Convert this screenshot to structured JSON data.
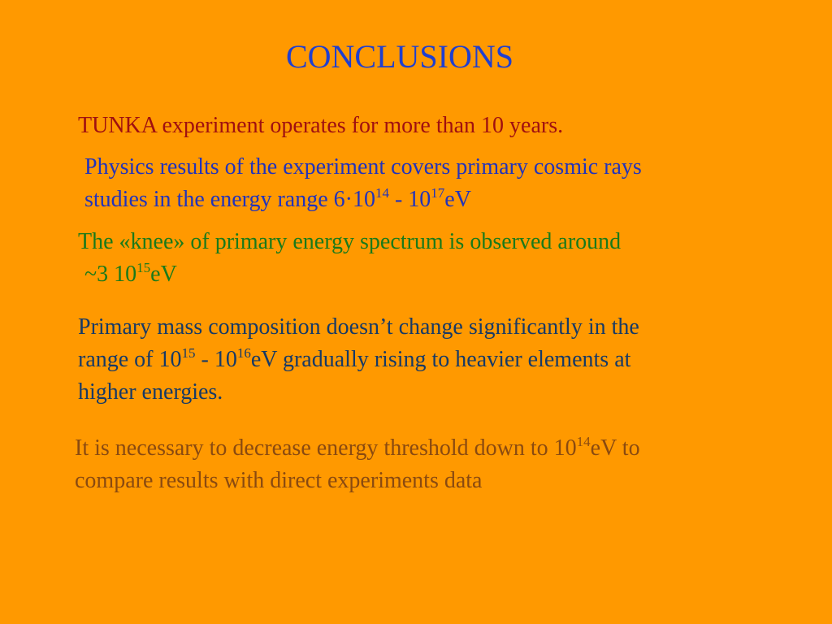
{
  "slide": {
    "title": "CONCLUSIONS",
    "colors": {
      "background": "#ff9900",
      "title": "#1f3fd0",
      "p1": "#a01010",
      "p2": "#2233bb",
      "p3": "#1a7a1a",
      "p4": "#173a66",
      "p5": "#8a4a10"
    },
    "p1": {
      "line1": "TUNKA experiment operates for more than 10 years."
    },
    "p2": {
      "line1": "Physics results of the experiment covers primary cosmic rays",
      "line2_text_a": "studies in the energy range 6·10",
      "line2_sup_a": "14",
      "line2_text_b": " - 10",
      "line2_sup_b": "17",
      "line2_text_c": "eV"
    },
    "p3": {
      "line1": "The «knee» of primary energy spectrum is observed around",
      "line2_text_a": "~3 10",
      "line2_sup_a": "15",
      "line2_text_b": "eV"
    },
    "p4": {
      "line1": "Primary mass composition doesn’t change significantly in the",
      "line2_text_a": "range of 10",
      "line2_sup_a": "15",
      "line2_text_b": " - 10",
      "line2_sup_b": "16",
      "line2_text_c": "eV gradually rising to heavier elements at",
      "line3": "higher energies."
    },
    "p5": {
      "line1_text_a": "It is necessary to decrease energy threshold down to 10",
      "line1_sup_a": "14",
      "line1_text_b": "eV to",
      "line2": "compare results with direct experiments data"
    }
  }
}
